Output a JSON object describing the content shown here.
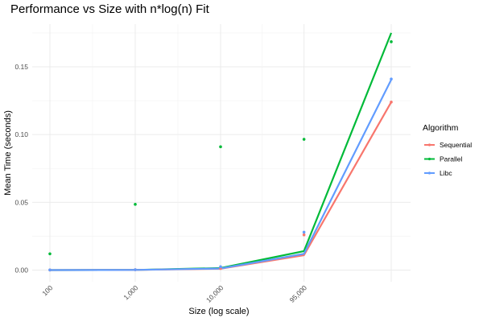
{
  "chart_data": {
    "type": "line",
    "title": "Performance vs Size with n*log(n) Fit",
    "xlabel": "Size (log scale)",
    "ylabel": "Mean Time (seconds)",
    "x_scale": "log10",
    "x": [
      100,
      1000,
      10000,
      95000,
      1000000
    ],
    "x_tick_values": [
      100,
      1000,
      10000,
      95000
    ],
    "x_tick_labels": [
      "100",
      "1,000",
      "10,000",
      "95,000"
    ],
    "y_ticks": [
      0.0,
      0.05,
      0.1,
      0.15
    ],
    "y_tick_labels": [
      "0.00",
      "0.05",
      "0.10",
      "0.15"
    ],
    "ylim": [
      -0.004,
      0.18
    ],
    "grid": true,
    "legend_position": "right",
    "legend_title": "Algorithm",
    "series": [
      {
        "name": "Sequential",
        "color": "#F8766D",
        "points": [
          0.0001,
          0.0003,
          0.0012,
          0.026,
          0.124
        ],
        "fit": [
          0.0,
          0.0001,
          0.001,
          0.011,
          0.124
        ]
      },
      {
        "name": "Parallel",
        "color": "#00BA38",
        "points": [
          0.012,
          0.0485,
          0.091,
          0.0965,
          0.1685
        ],
        "fit": [
          0.0,
          0.0001,
          0.0015,
          0.014,
          0.175
        ]
      },
      {
        "name": "Libc",
        "color": "#619CFF",
        "points": [
          0.0001,
          0.0003,
          0.0025,
          0.028,
          0.141
        ],
        "fit": [
          0.0,
          0.0001,
          0.0012,
          0.012,
          0.1405
        ]
      }
    ]
  }
}
